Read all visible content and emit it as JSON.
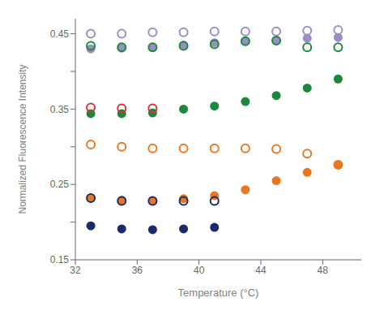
{
  "chart_data": {
    "type": "scatter",
    "xlabel": "Temperature (°C)",
    "ylabel": "Normalized Fluorescence Intensity",
    "xlim": [
      32,
      50.5
    ],
    "ylim": [
      0.15,
      0.47
    ],
    "xticks": [
      32,
      36,
      40,
      44,
      48
    ],
    "yticks": [
      0.15,
      {
        "value": 0.2,
        "label": ""
      },
      0.25,
      {
        "value": 0.3,
        "label": ""
      },
      0.35,
      {
        "value": 0.4,
        "label": ""
      },
      0.45
    ],
    "series": [
      {
        "color": "#9b8ec4",
        "marker": "ring",
        "x": [
          33,
          35,
          37,
          39,
          41,
          43,
          45,
          47,
          49
        ],
        "values": [
          0.45,
          0.45,
          0.452,
          0.452,
          0.453,
          0.453,
          0.453,
          0.454,
          0.455
        ]
      },
      {
        "color": "#9b8ec4",
        "marker": "circle",
        "x": [
          33,
          35,
          37,
          39,
          41,
          43,
          45,
          47,
          49
        ],
        "values": [
          0.43,
          0.431,
          0.432,
          0.435,
          0.438,
          0.44,
          0.441,
          0.444,
          0.445
        ]
      },
      {
        "color": "#1a8a3a",
        "marker": "ring",
        "x": [
          33,
          35,
          37,
          39,
          41,
          43,
          45,
          47,
          49
        ],
        "values": [
          0.434,
          0.432,
          0.432,
          0.434,
          0.436,
          0.44,
          0.441,
          0.432,
          0.432
        ]
      },
      {
        "color": "#1a8a3a",
        "marker": "circle",
        "x": [
          33,
          35,
          37,
          39,
          41,
          43,
          45,
          47,
          49
        ],
        "values": [
          0.344,
          0.344,
          0.345,
          0.35,
          0.354,
          0.36,
          0.368,
          0.378,
          0.39
        ]
      },
      {
        "color": "#e03030",
        "marker": "ring",
        "x": [
          33,
          35,
          37
        ],
        "values": [
          0.352,
          0.351,
          0.351
        ]
      },
      {
        "color": "#e87820",
        "marker": "ring",
        "x": [
          33,
          35,
          37,
          39,
          41,
          43,
          45,
          47,
          49
        ],
        "values": [
          0.303,
          0.3,
          0.298,
          0.298,
          0.298,
          0.298,
          0.297,
          0.291,
          0.276
        ]
      },
      {
        "color": "#e87820",
        "marker": "circle",
        "x": [
          33,
          35,
          37,
          39,
          41,
          43,
          45,
          47,
          49
        ],
        "values": [
          0.232,
          0.229,
          0.228,
          0.231,
          0.235,
          0.243,
          0.255,
          0.266,
          0.276
        ]
      },
      {
        "color": "#1a2a6c",
        "marker": "ring",
        "x": [
          33,
          35,
          37,
          39,
          41
        ],
        "values": [
          0.232,
          0.228,
          0.228,
          0.228,
          0.228
        ]
      },
      {
        "color": "#1a2a6c",
        "marker": "circle",
        "x": [
          33,
          35,
          37,
          39,
          41
        ],
        "values": [
          0.195,
          0.191,
          0.19,
          0.191,
          0.193
        ]
      }
    ]
  }
}
